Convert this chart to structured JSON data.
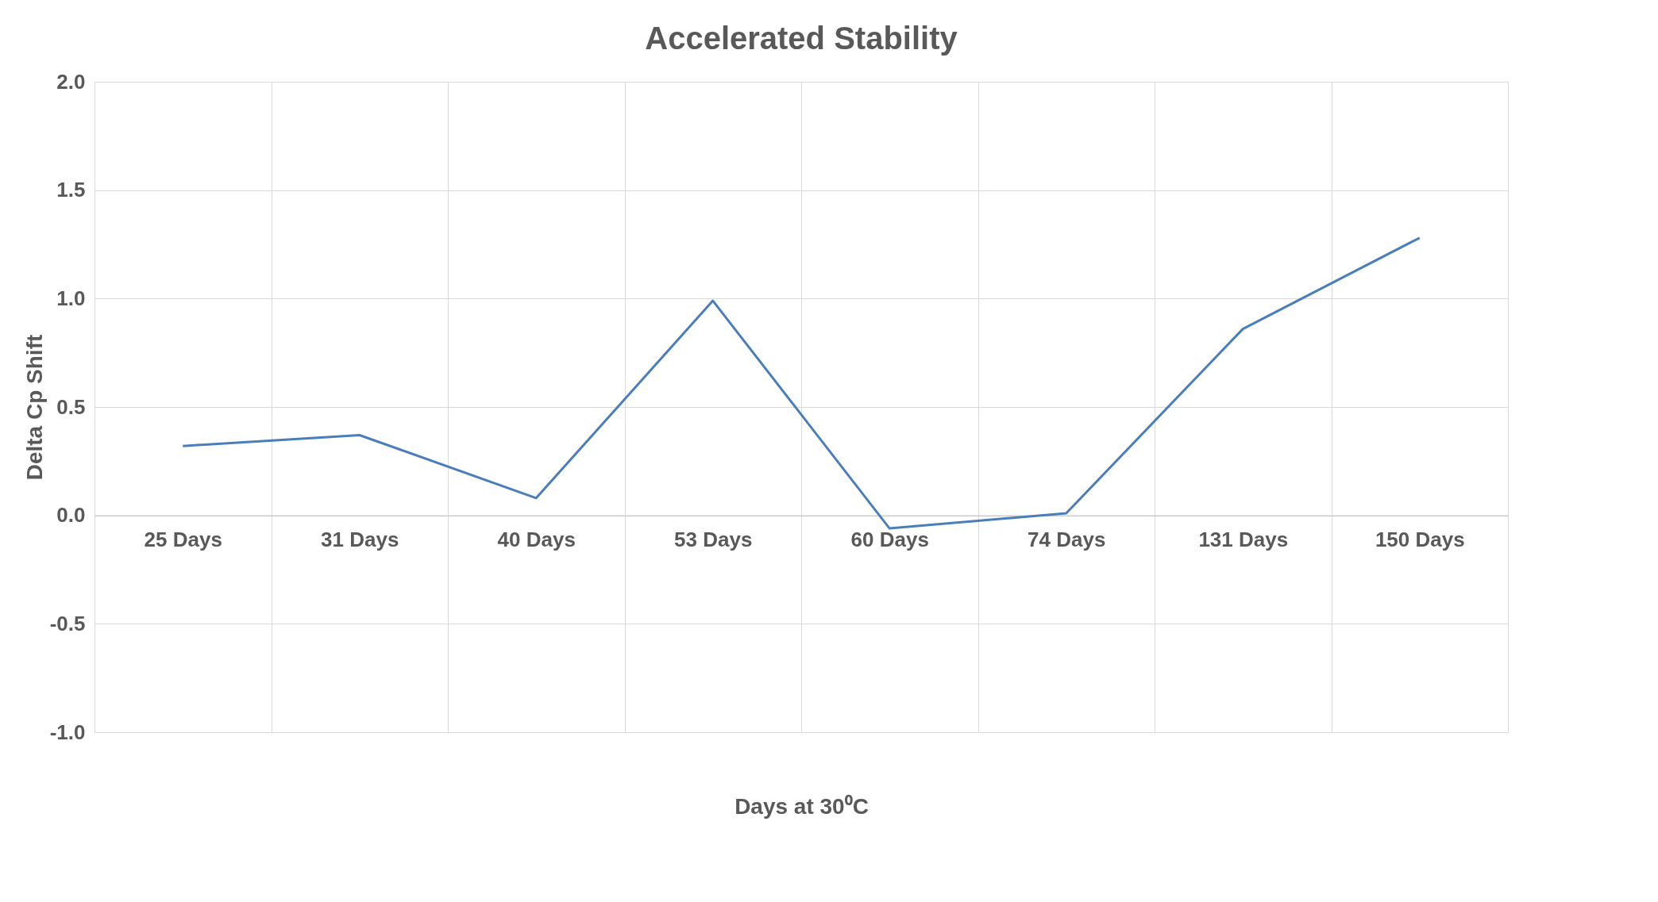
{
  "chart_data": {
    "type": "line",
    "title": "Accelerated Stability",
    "xlabel": "Days at 30⁰C",
    "ylabel": "Delta Cp Shift",
    "categories": [
      "25 Days",
      "31 Days",
      "40 Days",
      "53 Days",
      "60 Days",
      "74 Days",
      "131 Days",
      "150 Days"
    ],
    "series": [
      {
        "color": "#4a7ebb",
        "values": [
          0.32,
          0.37,
          0.08,
          0.99,
          -0.06,
          0.01,
          0.86,
          1.28
        ]
      }
    ],
    "ylim": [
      -1.0,
      2.0
    ],
    "yticks": [
      {
        "value": -1.0,
        "label": "-1.0"
      },
      {
        "value": -0.5,
        "label": "-0.5"
      },
      {
        "value": 0,
        "label": "0.0"
      },
      {
        "value": 0.5,
        "label": "0.5"
      },
      {
        "value": 1.0,
        "label": "1.0"
      },
      {
        "value": 1.5,
        "label": "1.5"
      },
      {
        "value": 2.0,
        "label": "2.0"
      }
    ],
    "grid": true,
    "marker": "none",
    "line_style": "solid"
  }
}
